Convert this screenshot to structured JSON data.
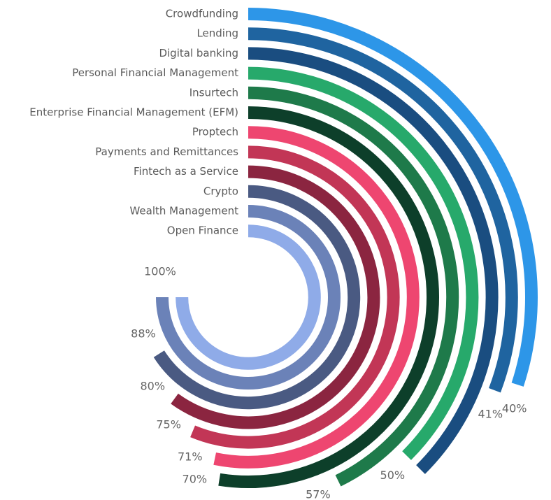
{
  "chart_data": {
    "type": "radial_bar",
    "categories": [
      "Crowdfunding",
      "Lending",
      "Digital banking",
      "Personal Financial Management",
      "Insurtech",
      "Enterprise Financial Management (EFM)",
      "Proptech",
      "Payments and Remittances",
      "Fintech as a Service",
      "Crypto",
      "Wealth Management",
      "Open Finance"
    ],
    "values": [
      40,
      41,
      50,
      50,
      57,
      70,
      71,
      75,
      80,
      88,
      100,
      100
    ],
    "value_labels": [
      "40%",
      "41%",
      null,
      "50%",
      "57%",
      "70%",
      "71%",
      "75%",
      "80%",
      "88%",
      "100%",
      null
    ],
    "colors": [
      "#2d96e8",
      "#1f64a0",
      "#1a4d80",
      "#27a96b",
      "#1e7a4a",
      "#0d3f2a",
      "#ee4670",
      "#c23656",
      "#8b2540",
      "#4a5a82",
      "#6b82b8",
      "#8fabe8"
    ],
    "ylim": [
      0,
      100
    ]
  }
}
